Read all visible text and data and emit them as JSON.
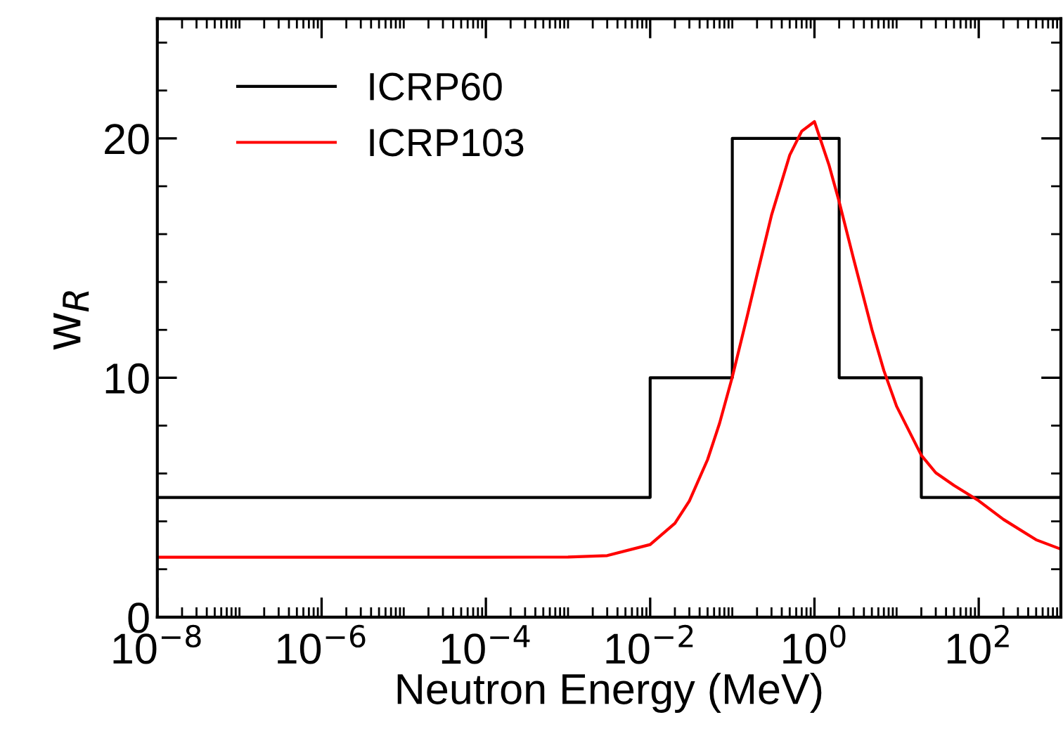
{
  "chart_data": {
    "type": "line",
    "xlabel": "Neutron Energy (MeV)",
    "ylabel": "w$_{R}$",
    "log": "x",
    "xlim": [
      1e-08,
      1000
    ],
    "ylim": [
      0,
      25
    ],
    "xticks": [
      {
        "value": 1e-08,
        "label": "10$^{−8}$"
      },
      {
        "value": 1e-06,
        "label": "10$^{−6}$"
      },
      {
        "value": 0.0001,
        "label": "10$^{−4}$"
      },
      {
        "value": 0.01,
        "label": "10$^{−2}$"
      },
      {
        "value": 1,
        "label": "10$^{0}$"
      },
      {
        "value": 100,
        "label": "10$^{2}$"
      }
    ],
    "yticks": [
      0,
      10,
      20
    ],
    "grid": false,
    "legend": "top left",
    "series": [
      {
        "name": "ICRP60",
        "type": "step",
        "color": "#000000",
        "x": [
          1e-08,
          0.01,
          0.1,
          2,
          20,
          1000
        ],
        "values": [
          5,
          10,
          20,
          10,
          5,
          5
        ]
      },
      {
        "name": "ICRP103",
        "color": "#ff0000",
        "x": [
          1e-08,
          1e-06,
          0.0001,
          0.001,
          0.003,
          0.01,
          0.02,
          0.03,
          0.05,
          0.07,
          0.1,
          0.15,
          0.2,
          0.3,
          0.5,
          0.7,
          1,
          1.5,
          2,
          3,
          5,
          7,
          10,
          20,
          30,
          50,
          100,
          200,
          500,
          1000
        ],
        "values": [
          2.5,
          2.5,
          2.5,
          2.51,
          2.57,
          3.03,
          3.92,
          4.85,
          6.58,
          8.1,
          10.03,
          12.5,
          14.3,
          16.79,
          19.3,
          20.3,
          20.7,
          18.9,
          17.35,
          14.96,
          12.02,
          10.3,
          8.81,
          6.76,
          6.03,
          5.5,
          4.86,
          4.08,
          3.23,
          2.84
        ]
      }
    ]
  }
}
